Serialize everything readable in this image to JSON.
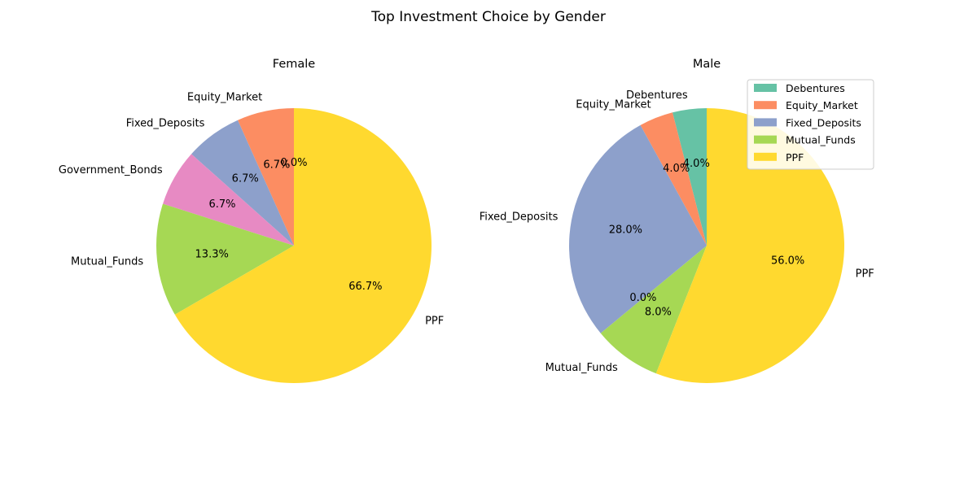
{
  "figure": {
    "title": "Top Investment Choice by Gender"
  },
  "colors": {
    "Debentures": "#66c2a5",
    "Equity_Market": "#fc8d62",
    "Fixed_Deposits": "#8da0cb",
    "Government_Bonds": "#e78ac3",
    "Mutual_Funds": "#a6d854",
    "PPF": "#ffd92f"
  },
  "chart_data": [
    {
      "type": "pie",
      "title": "Female",
      "start_angle_deg": 90,
      "direction": "counterclockwise",
      "slices": [
        {
          "label": "Debentures",
          "value": 0.0,
          "pct_label": "0.0%",
          "show_label": false
        },
        {
          "label": "Equity_Market",
          "value": 6.7,
          "pct_label": "6.7%",
          "show_label": true
        },
        {
          "label": "Fixed_Deposits",
          "value": 6.7,
          "pct_label": "6.7%",
          "show_label": true
        },
        {
          "label": "Government_Bonds",
          "value": 6.7,
          "pct_label": "6.7%",
          "show_label": true
        },
        {
          "label": "Mutual_Funds",
          "value": 13.3,
          "pct_label": "13.3%",
          "show_label": true
        },
        {
          "label": "PPF",
          "value": 66.7,
          "pct_label": "66.7%",
          "show_label": true
        }
      ]
    },
    {
      "type": "pie",
      "title": "Male",
      "start_angle_deg": 90,
      "direction": "counterclockwise",
      "slices": [
        {
          "label": "Debentures",
          "value": 4.0,
          "pct_label": "4.0%",
          "show_label": true
        },
        {
          "label": "Equity_Market",
          "value": 4.0,
          "pct_label": "4.0%",
          "show_label": true
        },
        {
          "label": "Fixed_Deposits",
          "value": 28.0,
          "pct_label": "28.0%",
          "show_label": true
        },
        {
          "label": "Government_Bonds",
          "value": 0.0,
          "pct_label": "0.0%",
          "show_label": false
        },
        {
          "label": "Mutual_Funds",
          "value": 8.0,
          "pct_label": "8.0%",
          "show_label": true
        },
        {
          "label": "PPF",
          "value": 56.0,
          "pct_label": "56.0%",
          "show_label": true
        }
      ],
      "legend": {
        "placement": "top-right",
        "entries": [
          "Debentures",
          "Equity_Market",
          "Fixed_Deposits",
          "Mutual_Funds",
          "PPF"
        ]
      }
    }
  ]
}
